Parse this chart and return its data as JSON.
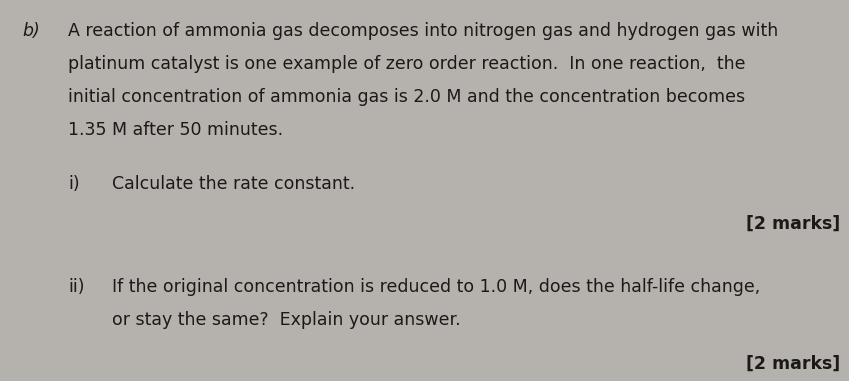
{
  "background_color": "#b5b1ac",
  "text_color": "#1c1a18",
  "label_b": "b)",
  "para1_line1": "A reaction of ammonia gas decomposes into nitrogen gas and hydrogen gas with",
  "para1_line2": "platinum catalyst is one example of zero order reaction.  In one reaction,  the",
  "para1_line3": "initial concentration of ammonia gas is 2.0 M and the concentration becomes",
  "para1_line4": "1.35 M after 50 minutes.",
  "sub_i_label": "i)",
  "sub_i_text": "Calculate the rate constant.",
  "marks_i": "[2 marks]",
  "sub_ii_label": "ii)",
  "sub_ii_line1": "If the original concentration is reduced to 1.0 M, does the half-life change,",
  "sub_ii_line2": "or stay the same?  Explain your answer.",
  "marks_ii": "[2 marks]",
  "body_fontsize": 12.5,
  "marks_fontsize": 12.5
}
